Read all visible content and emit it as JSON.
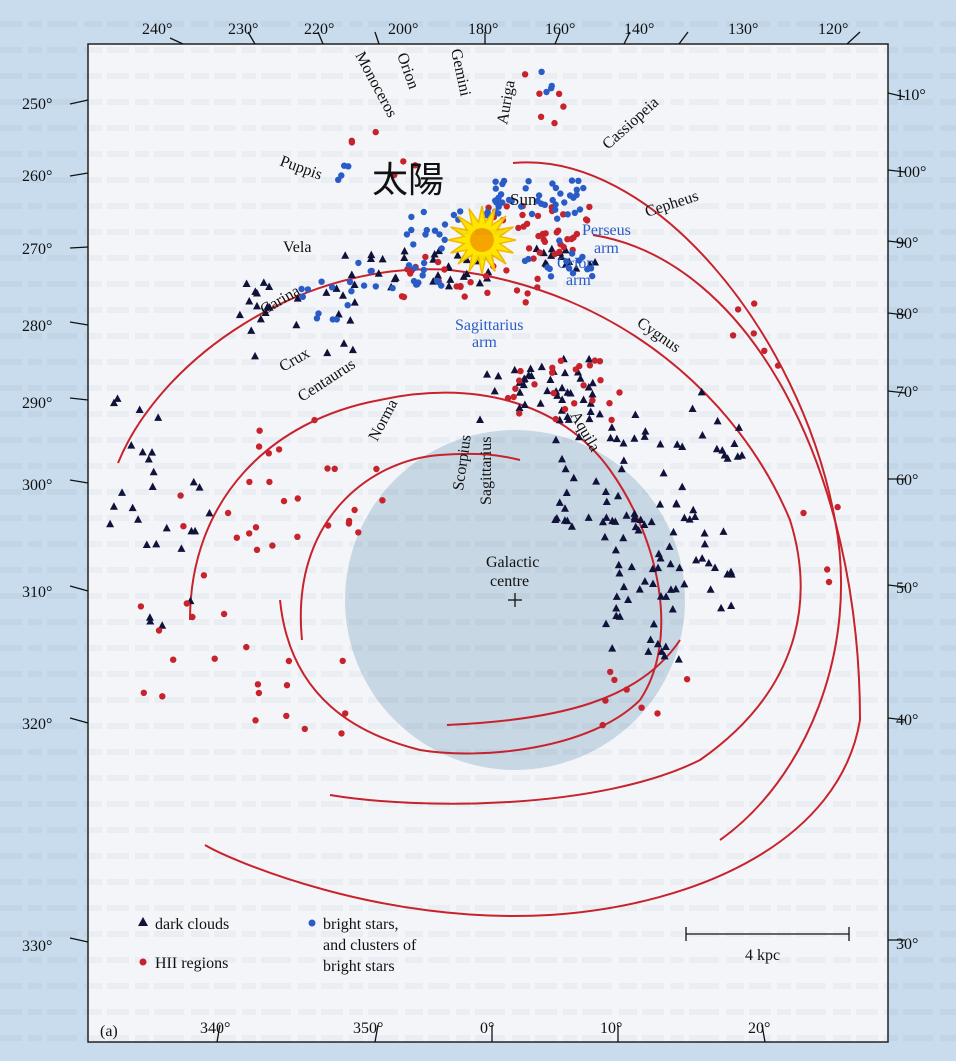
{
  "figure": {
    "panel_label": "(a)",
    "sun_label_jp": "太陽",
    "sun_label": "Sun",
    "centre_label_1": "Galactic",
    "centre_label_2": "centre",
    "scale_label": "4 kpc"
  },
  "arms": [
    {
      "key": "perseus",
      "line1": "Perseus",
      "line2": "arm"
    },
    {
      "key": "orion",
      "line1": "Orion",
      "line2": "arm"
    },
    {
      "key": "sagittarius",
      "line1": "Sagittarius",
      "line2": "arm"
    }
  ],
  "constellations": [
    "Monoceros",
    "Orion",
    "Gemini",
    "Auriga",
    "Cassiopeia",
    "Cepheus",
    "Cygnus",
    "Aquila",
    "Sagittarius",
    "Scorpius",
    "Norma",
    "Centaurus",
    "Crux",
    "Carina",
    "Vela",
    "Puppis"
  ],
  "ticks_top": [
    "240°",
    "230°",
    "220°",
    "200°",
    "180°",
    "160°",
    "140°",
    "130°",
    "120°"
  ],
  "ticks_left": [
    "250°",
    "260°",
    "270°",
    "280°",
    "290°",
    "300°",
    "310°",
    "320°",
    "330°"
  ],
  "ticks_right": [
    "110°",
    "100°",
    "90°",
    "80°",
    "70°",
    "60°",
    "50°",
    "40°",
    "30°"
  ],
  "ticks_bottom": [
    "340°",
    "350°",
    "0°",
    "10°",
    "20°"
  ],
  "legend": {
    "dark_clouds": "dark clouds",
    "hii": "HII regions",
    "bright_1": "bright stars,",
    "bright_2": "and clusters of",
    "bright_3": "bright stars"
  },
  "colors": {
    "arm_line": "#c8232c",
    "hii": "#c8232c",
    "bright_star": "#2a5cc8",
    "dark_cloud": "#10123a",
    "central_disk": "#b9ccdd",
    "panel": "#f4f5f8",
    "sun": "#f6c000"
  }
}
